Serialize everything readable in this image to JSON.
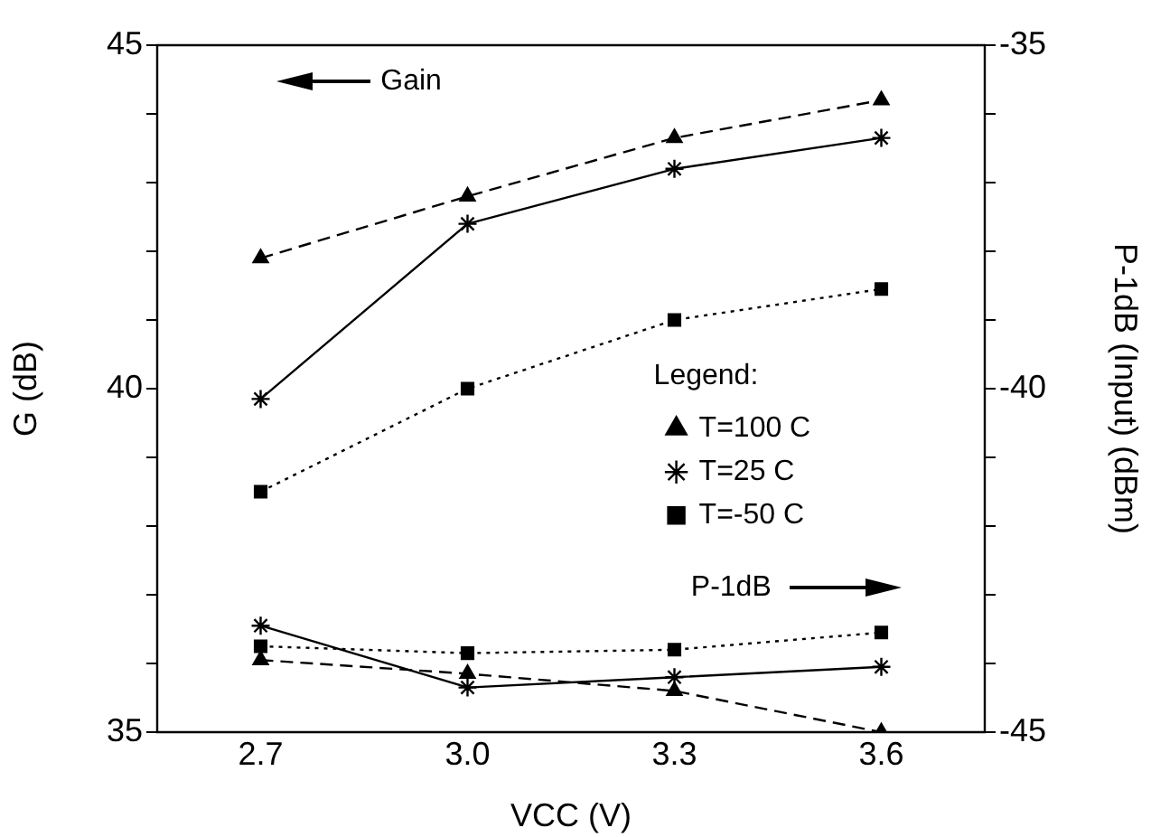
{
  "chart_data": {
    "type": "line",
    "xlabel": "VCC (V)",
    "ylabel": "G (dB)",
    "y2label": "P-1dB (Input) (dBm)",
    "legend_title": "Legend:",
    "legend": "right",
    "annotations": [
      "Gain",
      "P-1dB"
    ],
    "x": [
      2.7,
      3.0,
      3.3,
      3.6
    ],
    "xlim": [
      2.55,
      3.75
    ],
    "xticks": [
      {
        "value": 2.7,
        "label": "2.7"
      },
      {
        "value": 3.0,
        "label": "3.0"
      },
      {
        "value": 3.3,
        "label": "3.3"
      },
      {
        "value": 3.6,
        "label": "3.6"
      }
    ],
    "ylim": [
      35,
      45
    ],
    "yticks": [
      35,
      {
        "value": 36,
        "label": null
      },
      {
        "value": 37,
        "label": null
      },
      {
        "value": 38,
        "label": null
      },
      {
        "value": 39,
        "label": null
      },
      40,
      {
        "value": 41,
        "label": null
      },
      {
        "value": 42,
        "label": null
      },
      {
        "value": 43,
        "label": null
      },
      {
        "value": 44,
        "label": null
      },
      45
    ],
    "y2lim": [
      -45,
      -35
    ],
    "y2ticks": [
      -45,
      {
        "value": -44,
        "label": null
      },
      {
        "value": -43,
        "label": null
      },
      {
        "value": -42,
        "label": null
      },
      {
        "value": -41,
        "label": null
      },
      -40,
      {
        "value": -39,
        "label": null
      },
      {
        "value": -38,
        "label": null
      },
      {
        "value": -37,
        "label": null
      },
      {
        "value": -36,
        "label": null
      },
      -35
    ],
    "series": [
      {
        "name": "T=100 C",
        "color": "#000000",
        "values": [
          41.9,
          42.8,
          43.65,
          44.2
        ],
        "marker": "triangle",
        "line_style": "dashed"
      },
      {
        "name": "T=25 C",
        "color": "#000000",
        "values": [
          39.85,
          42.4,
          43.2,
          43.65
        ],
        "marker": "cross",
        "line_style": "solid"
      },
      {
        "name": "T=-50 C",
        "color": "#000000",
        "values": [
          38.5,
          40.0,
          41.0,
          41.45
        ],
        "marker": "square",
        "line_style": "dotted"
      },
      {
        "color": "#000000",
        "values": [
          -43.95,
          -44.15,
          -44.4,
          -45.0
        ],
        "axis": "y2",
        "marker": "triangle",
        "line_style": "dashed"
      },
      {
        "color": "#000000",
        "values": [
          -43.45,
          -44.35,
          -44.2,
          -44.05
        ],
        "axis": "y2",
        "marker": "cross",
        "line_style": "solid"
      },
      {
        "color": "#000000",
        "values": [
          -43.75,
          -43.85,
          -43.8,
          -43.55
        ],
        "axis": "y2",
        "marker": "square",
        "line_style": "dotted"
      }
    ]
  }
}
